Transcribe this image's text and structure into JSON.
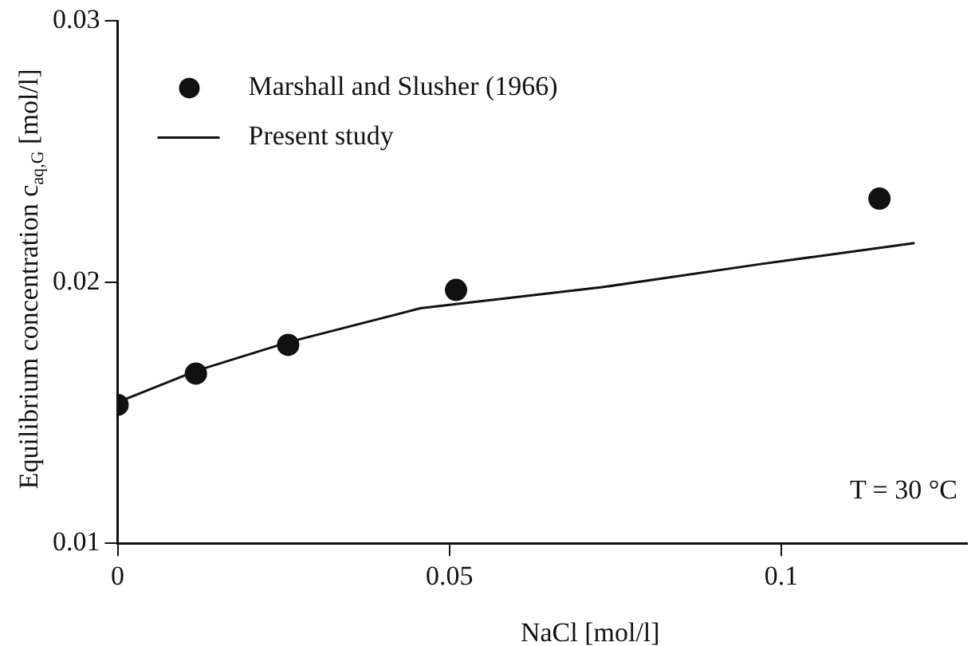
{
  "chart_data": {
    "type": "scatter",
    "xlabel": "NaCl [mol/l]",
    "ylabel": "Equilibrium concentration c$_{aq,G}$ [mol/l]",
    "xlim": [
      0,
      0.128
    ],
    "xticks": [
      0,
      0.05,
      0.1
    ],
    "ylim": [
      0.01,
      0.03
    ],
    "yticks": [
      0.01,
      0.02,
      0.03
    ],
    "grid": false,
    "legend": "top left",
    "annotations": [
      "T = 30 °C"
    ],
    "series": [
      {
        "name": "Marshall and Slusher (1966)",
        "type": "scatter",
        "marker": "circle",
        "color": "#111111",
        "x": [
          0,
          0.0118,
          0.0257,
          0.051,
          0.1148
        ],
        "values": [
          0.0153,
          0.0165,
          0.0176,
          0.0197,
          0.0232
        ]
      },
      {
        "name": "Present study",
        "type": "line",
        "marker": "none",
        "line_style": "solid",
        "color": "#111111",
        "x": [
          0,
          0.0118,
          0.0257,
          0.0456,
          0.0728,
          0.0971,
          0.1201
        ],
        "values": [
          0.0154,
          0.0166,
          0.0177,
          0.019,
          0.0198,
          0.0207,
          0.0215
        ]
      }
    ]
  }
}
